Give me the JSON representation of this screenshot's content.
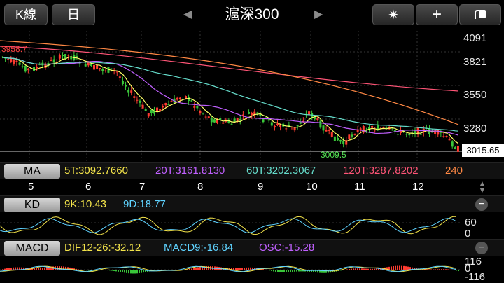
{
  "toolbar": {
    "kline_label": "K線",
    "day_label": "日",
    "title": "滬深300",
    "prev_glyph": "◀",
    "next_glyph": "▶",
    "settings_glyph": "✷",
    "add_glyph": "+",
    "share_icon": "share-icon"
  },
  "main": {
    "y_ticks": [
      "4091",
      "3821",
      "3550",
      "3280"
    ],
    "high_marker": "3958.7",
    "low_marker": "3009.5",
    "last_price": "3015.65",
    "colors": {
      "up": "#ff3b30",
      "down": "#39c639",
      "ma5": "#ffff66",
      "ma20": "#c060ff",
      "ma60": "#66ddcc",
      "ma120": "#ff5577",
      "ma240": "#ff8844"
    }
  },
  "ma": {
    "label": "MA",
    "items": [
      {
        "text": "5T:3092.7660",
        "color": "#f2e34a"
      },
      {
        "text": "20T:3161.8130",
        "color": "#c060ff"
      },
      {
        "text": "60T:3202.3067",
        "color": "#66ddcc"
      },
      {
        "text": "120T:3287.8202",
        "color": "#ff5577"
      },
      {
        "text": "240",
        "color": "#ff8844"
      }
    ]
  },
  "x_axis": {
    "months": [
      "5",
      "6",
      "7",
      "8",
      "9",
      "10",
      "11",
      "12"
    ]
  },
  "kd": {
    "label": "KD",
    "items": [
      {
        "text": "9K:10.43",
        "color": "#f2e34a"
      },
      {
        "text": "9D:18.77",
        "color": "#5fd3ff"
      }
    ],
    "y_tick": "60",
    "y_tick2": "0"
  },
  "macd": {
    "label": "MACD",
    "items": [
      {
        "text": "DIF12-26:-32.12",
        "color": "#f2e34a"
      },
      {
        "text": "MACD9:-16.84",
        "color": "#5fd3ff"
      },
      {
        "text": "OSC:-15.28",
        "color": "#c060ff"
      }
    ],
    "y_top": "116",
    "y_mid": "0",
    "y_bottom": "-116"
  }
}
